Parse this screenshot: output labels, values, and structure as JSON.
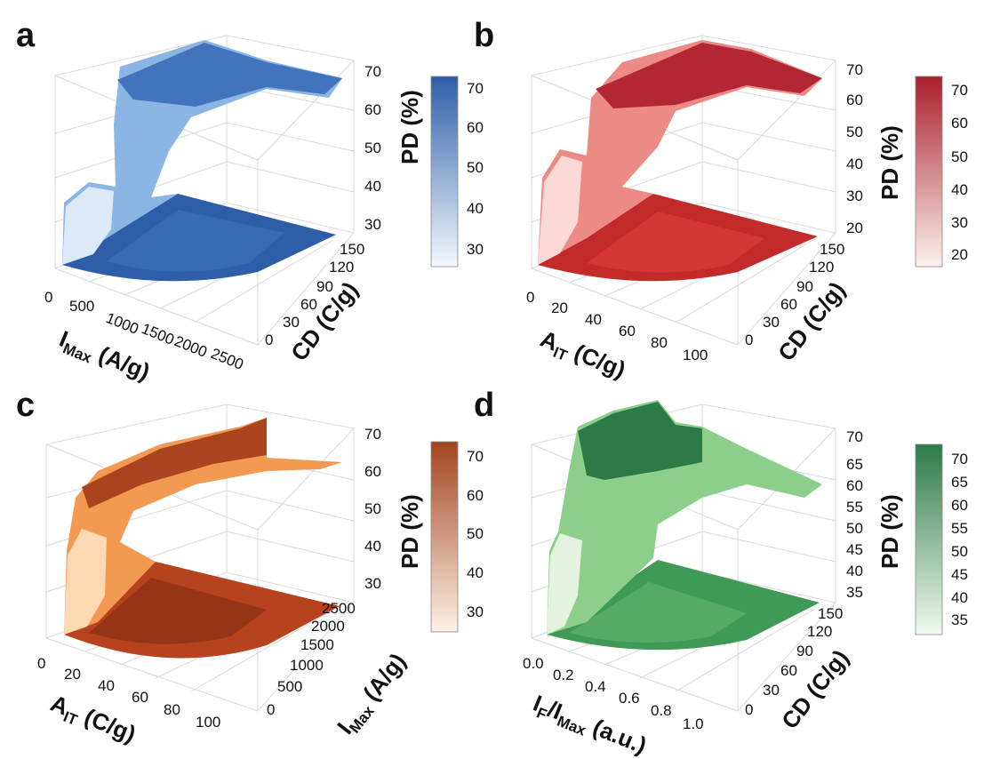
{
  "chart_data": [
    {
      "panel": "a",
      "type": "surface3d",
      "colormap": "Blues",
      "colors": {
        "low": "#f4f8fd",
        "high": "#2e5ea8"
      },
      "xlabel": {
        "main": "I",
        "sub": "Max",
        "rest": " (A/g)"
      },
      "ylabel": {
        "main": "CD (C/g)",
        "sub": "",
        "rest": ""
      },
      "zlabel": "PD (%)",
      "xticks": [
        "0",
        "500",
        "1000",
        "1500",
        "2000",
        "2500"
      ],
      "yticks": [
        "0",
        "30",
        "60",
        "90",
        "120",
        "150"
      ],
      "zticks": [
        "30",
        "40",
        "50",
        "60",
        "70"
      ],
      "cbar_ticks": [
        "30",
        "40",
        "50",
        "60",
        "70"
      ],
      "zlim": [
        24,
        74
      ],
      "xlim": [
        0,
        2500
      ],
      "ylim": [
        0,
        150
      ]
    },
    {
      "panel": "b",
      "type": "surface3d",
      "colormap": "Reds",
      "colors": {
        "low": "#fdf1ee",
        "high": "#a91f2c"
      },
      "xlabel": {
        "main": "A",
        "sub": "IT",
        "rest": " (C/g)"
      },
      "ylabel": {
        "main": "CD (C/g)",
        "sub": "",
        "rest": ""
      },
      "zlabel": "PD (%)",
      "xticks": [
        "0",
        "20",
        "40",
        "60",
        "80",
        "100"
      ],
      "yticks": [
        "0",
        "30",
        "60",
        "90",
        "120",
        "150"
      ],
      "zticks": [
        "20",
        "30",
        "40",
        "50",
        "60",
        "70"
      ],
      "cbar_ticks": [
        "20",
        "30",
        "40",
        "50",
        "60",
        "70"
      ],
      "zlim": [
        17,
        74
      ],
      "xlim": [
        0,
        110
      ],
      "ylim": [
        0,
        150
      ]
    },
    {
      "panel": "c",
      "type": "surface3d",
      "colormap": "Oranges",
      "colors": {
        "low": "#fdf2e6",
        "high": "#a34320"
      },
      "xlabel": {
        "main": "A",
        "sub": "IT",
        "rest": " (C/g)"
      },
      "ylabel": {
        "main": "I",
        "sub": "Max",
        "rest": " (A/g)"
      },
      "zlabel": "PD (%)",
      "xticks": [
        "0",
        "20",
        "40",
        "60",
        "80",
        "100"
      ],
      "yticks": [
        "0",
        "500",
        "1000",
        "1500",
        "2000",
        "2500"
      ],
      "zticks": [
        "30",
        "40",
        "50",
        "60",
        "70"
      ],
      "cbar_ticks": [
        "30",
        "40",
        "50",
        "60",
        "70"
      ],
      "zlim": [
        22,
        71
      ],
      "xlim": [
        0,
        110
      ],
      "ylim": [
        0,
        2500
      ]
    },
    {
      "panel": "d",
      "type": "surface3d",
      "colormap": "Greens",
      "colors": {
        "low": "#f2f9f1",
        "high": "#2c7a47"
      },
      "xlabel": {
        "main": "I",
        "sub": "F",
        "rest": "/I",
        "sub2": "Max",
        "rest2": " (a.u.)"
      },
      "ylabel": {
        "main": "CD (C/g)",
        "sub": "",
        "rest": ""
      },
      "zlabel": "PD (%)",
      "xticks": [
        "0.0",
        "0.2",
        "0.4",
        "0.6",
        "0.8",
        "1.0"
      ],
      "yticks": [
        "0",
        "30",
        "60",
        "90",
        "120",
        "150"
      ],
      "zticks": [
        "35",
        "40",
        "45",
        "50",
        "55",
        "60",
        "65",
        "70"
      ],
      "cbar_ticks": [
        "35",
        "40",
        "45",
        "50",
        "55",
        "60",
        "65",
        "70"
      ],
      "zlim": [
        33,
        73
      ],
      "xlim": [
        0,
        1
      ],
      "ylim": [
        0,
        150
      ]
    }
  ]
}
